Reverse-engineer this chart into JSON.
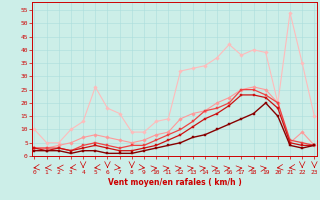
{
  "xlabel": "Vent moyen/en rafales ( km/h )",
  "bg_color": "#cceee8",
  "grid_color": "#aadddd",
  "x_ticks": [
    0,
    1,
    2,
    3,
    4,
    5,
    6,
    7,
    8,
    9,
    10,
    11,
    12,
    13,
    14,
    15,
    16,
    17,
    18,
    19,
    20,
    21,
    22,
    23
  ],
  "y_ticks": [
    0,
    5,
    10,
    15,
    20,
    25,
    30,
    35,
    40,
    45,
    50,
    55
  ],
  "xlim": [
    -0.2,
    23.2
  ],
  "ylim": [
    0,
    58
  ],
  "series": [
    {
      "color": "#ffbbbb",
      "lw": 0.8,
      "marker": "D",
      "ms": 1.8,
      "data": [
        [
          0,
          10
        ],
        [
          1,
          5
        ],
        [
          2,
          5
        ],
        [
          3,
          10
        ],
        [
          4,
          13
        ],
        [
          5,
          26
        ],
        [
          6,
          18
        ],
        [
          7,
          16
        ],
        [
          8,
          9
        ],
        [
          9,
          9
        ],
        [
          10,
          13
        ],
        [
          11,
          14
        ],
        [
          12,
          32
        ],
        [
          13,
          33
        ],
        [
          14,
          34
        ],
        [
          15,
          37
        ],
        [
          16,
          42
        ],
        [
          17,
          38
        ],
        [
          18,
          40
        ],
        [
          19,
          39
        ],
        [
          20,
          20
        ],
        [
          21,
          54
        ],
        [
          22,
          35
        ],
        [
          23,
          15
        ]
      ]
    },
    {
      "color": "#ff9999",
      "lw": 0.8,
      "marker": "D",
      "ms": 1.8,
      "data": [
        [
          0,
          3
        ],
        [
          1,
          3
        ],
        [
          2,
          4
        ],
        [
          3,
          5
        ],
        [
          4,
          7
        ],
        [
          5,
          8
        ],
        [
          6,
          7
        ],
        [
          7,
          6
        ],
        [
          8,
          5
        ],
        [
          9,
          6
        ],
        [
          10,
          8
        ],
        [
          11,
          9
        ],
        [
          12,
          14
        ],
        [
          13,
          16
        ],
        [
          14,
          17
        ],
        [
          15,
          20
        ],
        [
          16,
          22
        ],
        [
          17,
          25
        ],
        [
          18,
          26
        ],
        [
          19,
          25
        ],
        [
          20,
          20
        ],
        [
          21,
          5
        ],
        [
          22,
          9
        ],
        [
          23,
          4
        ]
      ]
    },
    {
      "color": "#ee4444",
      "lw": 0.9,
      "marker": "s",
      "ms": 2.0,
      "data": [
        [
          0,
          3
        ],
        [
          1,
          3
        ],
        [
          2,
          3
        ],
        [
          3,
          2
        ],
        [
          4,
          4
        ],
        [
          5,
          5
        ],
        [
          6,
          4
        ],
        [
          7,
          3
        ],
        [
          8,
          4
        ],
        [
          9,
          4
        ],
        [
          10,
          6
        ],
        [
          11,
          8
        ],
        [
          12,
          10
        ],
        [
          13,
          13
        ],
        [
          14,
          17
        ],
        [
          15,
          18
        ],
        [
          16,
          20
        ],
        [
          17,
          25
        ],
        [
          18,
          25
        ],
        [
          19,
          23
        ],
        [
          20,
          20
        ],
        [
          21,
          6
        ],
        [
          22,
          5
        ],
        [
          23,
          4
        ]
      ]
    },
    {
      "color": "#cc1111",
      "lw": 0.9,
      "marker": "s",
      "ms": 2.0,
      "data": [
        [
          0,
          3
        ],
        [
          1,
          2
        ],
        [
          2,
          3
        ],
        [
          3,
          2
        ],
        [
          4,
          3
        ],
        [
          5,
          4
        ],
        [
          6,
          3
        ],
        [
          7,
          2
        ],
        [
          8,
          2
        ],
        [
          9,
          3
        ],
        [
          10,
          4
        ],
        [
          11,
          6
        ],
        [
          12,
          8
        ],
        [
          13,
          11
        ],
        [
          14,
          14
        ],
        [
          15,
          16
        ],
        [
          16,
          19
        ],
        [
          17,
          23
        ],
        [
          18,
          23
        ],
        [
          19,
          22
        ],
        [
          20,
          18
        ],
        [
          21,
          5
        ],
        [
          22,
          4
        ],
        [
          23,
          4
        ]
      ]
    },
    {
      "color": "#880000",
      "lw": 1.0,
      "marker": "s",
      "ms": 2.0,
      "data": [
        [
          0,
          2
        ],
        [
          1,
          2
        ],
        [
          2,
          2
        ],
        [
          3,
          1
        ],
        [
          4,
          2
        ],
        [
          5,
          2
        ],
        [
          6,
          1
        ],
        [
          7,
          1
        ],
        [
          8,
          1
        ],
        [
          9,
          2
        ],
        [
          10,
          3
        ],
        [
          11,
          4
        ],
        [
          12,
          5
        ],
        [
          13,
          7
        ],
        [
          14,
          8
        ],
        [
          15,
          10
        ],
        [
          16,
          12
        ],
        [
          17,
          14
        ],
        [
          18,
          16
        ],
        [
          19,
          20
        ],
        [
          20,
          15
        ],
        [
          21,
          4
        ],
        [
          22,
          3
        ],
        [
          23,
          4
        ]
      ]
    }
  ]
}
